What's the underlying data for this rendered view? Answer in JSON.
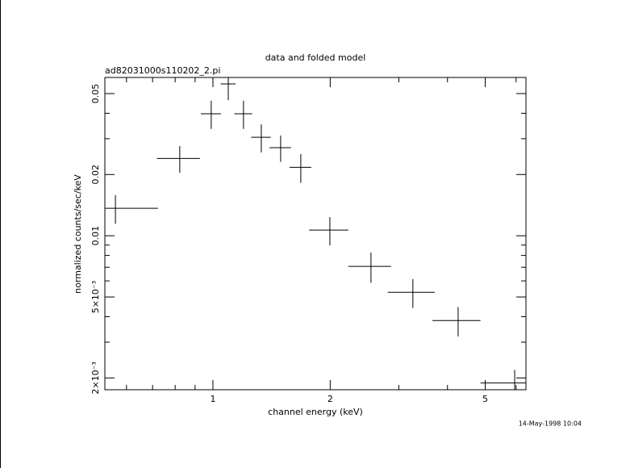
{
  "chart_data": {
    "type": "scatter",
    "title": "data and folded model",
    "subtitle": "ad82031000s110202_2.pi",
    "x_label": "channel energy (keV)",
    "y_label": "normalized counts/sec/keV",
    "annotation": "14-May-1998 10:04",
    "color": "#000000",
    "xlog": true,
    "ylog": true,
    "xlim": [
      0.528,
      6.36
    ],
    "ylim": [
      0.00175,
      0.06
    ],
    "xticks": [
      1,
      2,
      5
    ],
    "xminor": [
      0.6,
      0.7,
      0.8,
      0.9,
      3,
      4,
      6
    ],
    "yticks": [
      {
        "value": 0.002,
        "label": "2×10⁻³"
      },
      {
        "value": 0.005,
        "label": "5×10⁻³"
      },
      0.01,
      0.02,
      0.05
    ],
    "yminor": [
      0.003,
      0.004,
      0.006,
      0.007,
      0.008,
      0.009,
      0.03,
      0.04
    ],
    "x": [
      0.562,
      0.822,
      0.99,
      1.095,
      1.198,
      1.331,
      1.492,
      1.681,
      1.996,
      2.545,
      3.26,
      4.26,
      5.95
    ],
    "xerr": [
      0.161,
      0.104,
      0.059,
      0.048,
      0.063,
      0.077,
      0.094,
      0.108,
      0.23,
      0.32,
      0.45,
      0.6,
      1.09
    ],
    "values": [
      0.01364,
      0.024,
      0.0398,
      0.0558,
      0.0398,
      0.0305,
      0.0271,
      0.0217,
      0.01066,
      0.00707,
      0.00527,
      0.00383,
      0.00189
    ],
    "yerr": [
      0.0022,
      0.0036,
      0.0063,
      0.0094,
      0.0063,
      0.0048,
      0.004,
      0.0035,
      0.0017,
      0.0012,
      0.00085,
      0.00063,
      0.0003
    ]
  }
}
